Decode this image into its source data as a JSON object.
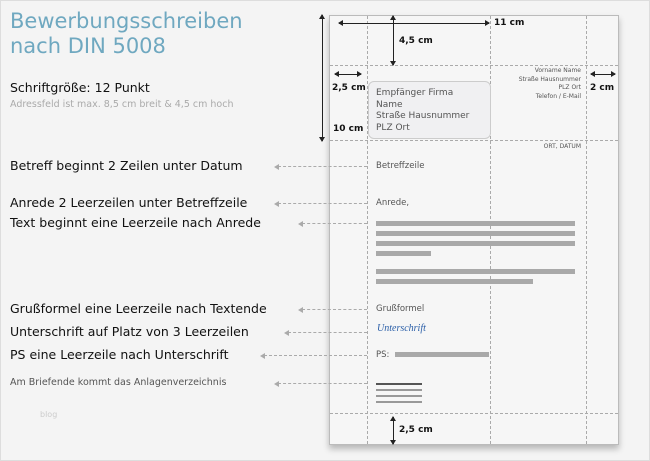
{
  "title_line1": "Bewerbungsschreiben",
  "title_line2": "nach DIN 5008",
  "font_size_note": "Schriftgröße: 12 Punkt",
  "address_note": "Adressfeld ist max. 8,5 cm breit & 4,5 cm hoch",
  "rules": [
    "Betreff beginnt 2 Zeilen unter Datum",
    "Anrede 2 Leerzeilen unter Betreffzeile",
    "Text beginnt eine Leerzeile nach Anrede",
    "Grußformel eine Leerzeile nach Textende",
    "Unterschrift auf Platz von 3 Leerzeilen",
    "PS eine Leerzeile nach Unterschrift",
    "Am Briefende kommt das Anlagenverzeichnis"
  ],
  "watermark": "blog",
  "measures": {
    "width_11": "11 cm",
    "top_45": "4,5 cm",
    "left_25": "2,5 cm",
    "right_2": "2 cm",
    "height_10": "10 cm",
    "bottom_25": "2,5 cm"
  },
  "recipient": [
    "Empfänger Firma",
    "Name",
    "Straße Hausnummer",
    "PLZ Ort"
  ],
  "sender": [
    "Vorname Name",
    "Straße Hausnummer",
    "PLZ Ort",
    "Telefon / E-Mail"
  ],
  "date": "ORT, DATUM",
  "letter": {
    "subject": "Betreffzeile",
    "salutation": "Anrede,",
    "closing": "Grußformel",
    "signature": "Unterschrift",
    "ps": "PS:"
  },
  "colors": {
    "title": "#6fa8c0",
    "signature": "#2b5fa8"
  }
}
